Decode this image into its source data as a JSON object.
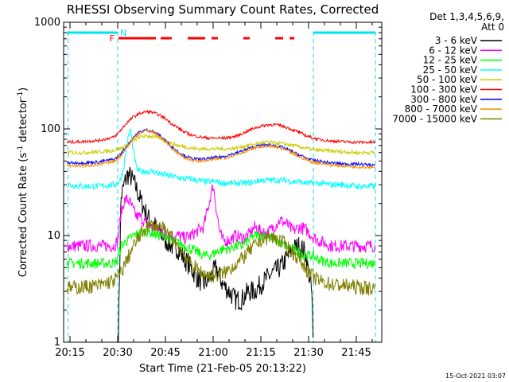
{
  "chart_data": {
    "type": "line",
    "title": "RHESSI Observing Summary Count Rates, Corrected",
    "xlabel": "Start Time (21-Feb-05 20:13:22)",
    "ylabel_parts": [
      "Corrected Count Rate (s",
      "-1",
      " detector",
      "-1",
      ")"
    ],
    "yscale": "log",
    "ylim": [
      1,
      1000
    ],
    "xlim_minutes": [
      -2,
      98
    ],
    "x_tick_labels": [
      "20:15",
      "20:30",
      "20:45",
      "21:00",
      "21:15",
      "21:30",
      "21:45"
    ],
    "x_tick_minutes": [
      0,
      15,
      30,
      45,
      60,
      75,
      90
    ],
    "y_tick_labels": [
      "1",
      "10",
      "100",
      "1000"
    ],
    "y_tick_values": [
      1,
      10,
      100,
      1000
    ],
    "legend_position": "right",
    "legend_header": [
      "Det 1,3,4,5,6,9,",
      "Att 0"
    ],
    "date_stamp": "15-Oct-2021 03:07",
    "annotations": {
      "flag_F": "F",
      "flag_N": "N",
      "flare_segments_minutes": [
        [
          15.2,
          27.0
        ],
        [
          28.5,
          32.0
        ],
        [
          37.0,
          42.5
        ],
        [
          44.5,
          46.5
        ],
        [
          54.5,
          56.5
        ],
        [
          64.5,
          67.0
        ],
        [
          69.0,
          70.5
        ]
      ],
      "night_segments_minutes": [
        [
          -1.0,
          15.0
        ],
        [
          76.5,
          96.0
        ]
      ],
      "night_boundaries_minutes": [
        -0.6,
        15.0,
        76.5,
        96.0
      ]
    },
    "series": [
      {
        "name": "3 - 6 keV",
        "color": "#000000",
        "x": [
          15.2,
          16,
          17,
          18,
          19,
          20,
          21,
          22,
          23,
          24,
          25,
          26,
          27,
          28,
          29,
          30,
          32,
          34,
          36,
          38,
          40,
          42,
          44,
          46,
          48,
          50,
          52,
          54,
          56,
          58,
          60,
          62,
          64,
          66,
          68,
          70,
          72,
          74,
          76,
          76.4
        ],
        "values": [
          1,
          22,
          30,
          37,
          36,
          32,
          27,
          22,
          19,
          16,
          14,
          13,
          12,
          11,
          10,
          9,
          8,
          7.5,
          6,
          5,
          4,
          3.5,
          4,
          5,
          3.5,
          3,
          2.5,
          2.5,
          3,
          3,
          3.5,
          4,
          4.5,
          5,
          6,
          7.5,
          8,
          7,
          3,
          1
        ]
      },
      {
        "name": "6 - 12 keV",
        "color": "#ff00ff",
        "x": [
          -1,
          4,
          9,
          14,
          15,
          16,
          17,
          18,
          19,
          20,
          21,
          22,
          23,
          24,
          25,
          26,
          28,
          30,
          32,
          34,
          36,
          38,
          40,
          42,
          44,
          45,
          46,
          47,
          48,
          50,
          52,
          54,
          56,
          58,
          60,
          62,
          64,
          66,
          68,
          70,
          72,
          74,
          76,
          78,
          82,
          86,
          90,
          94,
          96
        ],
        "values": [
          8,
          8,
          8,
          8,
          9,
          16,
          21,
          22,
          20,
          17,
          15,
          15,
          14,
          13,
          12,
          12,
          11,
          11,
          10,
          10,
          9.5,
          10,
          11,
          12,
          22,
          30,
          18,
          11,
          9,
          9,
          10,
          9.5,
          10,
          12,
          11,
          10.5,
          12,
          14,
          13,
          11,
          12,
          11.5,
          10,
          9,
          8,
          8,
          8,
          8,
          8
        ]
      },
      {
        "name": "12 - 25 keV",
        "color": "#00ff00",
        "x": [
          -1,
          4,
          9,
          14,
          15,
          16,
          18,
          20,
          22,
          24,
          26,
          28,
          30,
          32,
          34,
          36,
          38,
          40,
          42,
          44,
          46,
          48,
          50,
          52,
          54,
          56,
          58,
          60,
          62,
          64,
          66,
          68,
          70,
          72,
          74,
          76,
          78,
          82,
          86,
          90,
          94,
          96
        ],
        "values": [
          5.5,
          5.5,
          5.5,
          5.5,
          6,
          8,
          9,
          10,
          10.5,
          11,
          10.5,
          10,
          10,
          9,
          8.5,
          8,
          7.5,
          7,
          6.5,
          6.5,
          7,
          7.5,
          7.5,
          8,
          8,
          9,
          10,
          10,
          10,
          9.5,
          8.5,
          8,
          7.5,
          7,
          6.5,
          6.5,
          6,
          5.5,
          5.5,
          5.5,
          5.5,
          5.5
        ]
      },
      {
        "name": "25 - 50 keV",
        "color": "#00ffff",
        "x": [
          -1,
          4,
          9,
          14,
          15,
          16,
          17,
          18,
          19,
          20,
          21,
          22,
          24,
          26,
          28,
          30,
          32,
          34,
          36,
          38,
          40,
          42,
          44,
          46,
          48,
          50,
          52,
          54,
          56,
          58,
          60,
          62,
          64,
          66,
          68,
          70,
          72,
          74,
          76,
          78,
          82,
          86,
          90,
          94,
          96
        ],
        "values": [
          30,
          29,
          29,
          30,
          31,
          34,
          45,
          75,
          100,
          60,
          42,
          40,
          40,
          40,
          38,
          37,
          36,
          35,
          34,
          34,
          33,
          32,
          32,
          32,
          31,
          31,
          31,
          31,
          31,
          32,
          33,
          33,
          33,
          33,
          33,
          32,
          32,
          31,
          31,
          31,
          30,
          30,
          29,
          29,
          29
        ]
      },
      {
        "name": "50 - 100 keV",
        "color": "#cccc00",
        "x": [
          -1,
          4,
          9,
          14,
          16,
          18,
          20,
          22,
          24,
          26,
          28,
          30,
          32,
          34,
          36,
          38,
          40,
          42,
          44,
          46,
          48,
          50,
          52,
          54,
          56,
          58,
          60,
          62,
          64,
          66,
          68,
          70,
          72,
          74,
          76,
          78,
          82,
          86,
          90,
          94,
          96
        ],
        "values": [
          60,
          60,
          61,
          63,
          66,
          70,
          78,
          84,
          86,
          85,
          82,
          78,
          73,
          70,
          68,
          66,
          65,
          65,
          65,
          65,
          65,
          65,
          66,
          68,
          70,
          72,
          74,
          75,
          74,
          73,
          72,
          70,
          68,
          66,
          64,
          63,
          62,
          61,
          60,
          60,
          60
        ]
      },
      {
        "name": "100 - 300 keV",
        "color": "#ff0000",
        "x": [
          -1,
          4,
          9,
          14,
          16,
          18,
          20,
          22,
          24,
          26,
          28,
          30,
          32,
          34,
          36,
          38,
          40,
          42,
          44,
          46,
          48,
          50,
          52,
          54,
          56,
          58,
          60,
          62,
          64,
          66,
          68,
          70,
          72,
          74,
          76,
          78,
          82,
          86,
          90,
          94,
          96
        ],
        "values": [
          75,
          76,
          78,
          84,
          98,
          115,
          130,
          140,
          145,
          143,
          135,
          125,
          112,
          102,
          93,
          88,
          85,
          83,
          82,
          82,
          82,
          83,
          85,
          90,
          96,
          102,
          106,
          109,
          110,
          108,
          104,
          98,
          93,
          87,
          83,
          80,
          77,
          76,
          75,
          75,
          75
        ]
      },
      {
        "name": "300 - 800 keV",
        "color": "#0000ff",
        "x": [
          -1,
          4,
          9,
          14,
          16,
          18,
          20,
          22,
          24,
          26,
          28,
          30,
          32,
          34,
          36,
          38,
          40,
          42,
          44,
          46,
          48,
          50,
          52,
          54,
          56,
          58,
          60,
          62,
          64,
          66,
          68,
          70,
          72,
          74,
          76,
          78,
          82,
          86,
          90,
          94,
          96
        ],
        "values": [
          48,
          48,
          49,
          52,
          58,
          70,
          84,
          94,
          98,
          95,
          88,
          78,
          68,
          61,
          56,
          53,
          52,
          52,
          53,
          54,
          55,
          57,
          59,
          62,
          65,
          68,
          70,
          71,
          70,
          68,
          65,
          61,
          57,
          54,
          51,
          50,
          48,
          47,
          47,
          46,
          46
        ]
      },
      {
        "name": "800 - 7000 keV",
        "color": "#ff8c00",
        "x": [
          -1,
          4,
          9,
          14,
          16,
          18,
          20,
          22,
          24,
          26,
          28,
          30,
          32,
          34,
          36,
          38,
          40,
          42,
          44,
          46,
          48,
          50,
          52,
          54,
          56,
          58,
          60,
          62,
          64,
          66,
          68,
          70,
          72,
          74,
          76,
          78,
          82,
          86,
          90,
          94,
          96
        ],
        "values": [
          45,
          45,
          46,
          50,
          56,
          68,
          82,
          92,
          96,
          93,
          86,
          76,
          66,
          59,
          54,
          51,
          50,
          50,
          51,
          52,
          53,
          55,
          57,
          60,
          63,
          66,
          68,
          69,
          68,
          66,
          63,
          59,
          55,
          52,
          49,
          48,
          46,
          45,
          44,
          44,
          44
        ]
      },
      {
        "name": "7000 - 15000 keV",
        "color": "#808000",
        "x": [
          -1,
          4,
          9,
          14,
          16,
          18,
          20,
          22,
          24,
          26,
          28,
          30,
          32,
          34,
          36,
          38,
          40,
          42,
          44,
          46,
          48,
          50,
          52,
          54,
          56,
          58,
          60,
          62,
          64,
          66,
          68,
          70,
          72,
          74,
          76,
          78,
          82,
          86,
          90,
          94,
          96
        ],
        "values": [
          3.2,
          3.3,
          3.4,
          3.8,
          4.5,
          6,
          8,
          10,
          12,
          12.5,
          12,
          11,
          9.5,
          8,
          6.5,
          5.5,
          4.8,
          4.4,
          4.2,
          4.2,
          4.4,
          4.8,
          5.4,
          6,
          7,
          8,
          9,
          9.5,
          9.5,
          9,
          8,
          7,
          6,
          5,
          4.2,
          3.8,
          3.5,
          3.4,
          3.3,
          3.2,
          3.2
        ]
      }
    ]
  }
}
